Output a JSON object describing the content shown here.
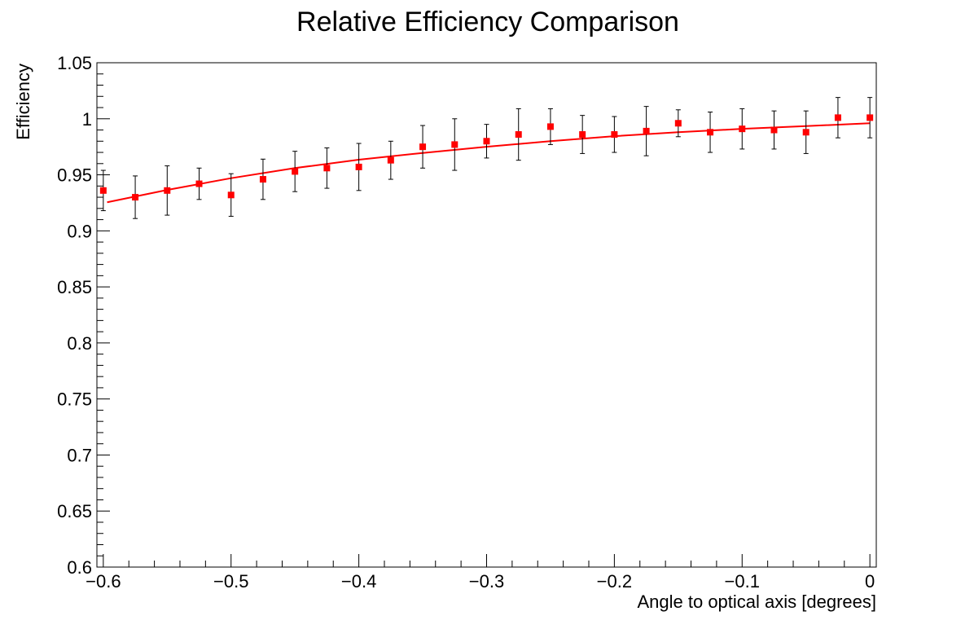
{
  "chart_data": {
    "type": "scatter",
    "title": "Relative Efficiency Comparison",
    "xlabel": "Angle to optical axis [degrees]",
    "ylabel": "Efficiency",
    "xlim": [
      -0.605,
      0.005
    ],
    "ylim": [
      0.6,
      1.05
    ],
    "x_ticks": [
      -0.6,
      -0.5,
      -0.4,
      -0.3,
      -0.2,
      -0.1,
      0
    ],
    "x_tick_labels": [
      "−0.6",
      "−0.5",
      "−0.4",
      "−0.3",
      "−0.2",
      "−0.1",
      "0"
    ],
    "y_ticks": [
      0.6,
      0.65,
      0.7,
      0.75,
      0.8,
      0.85,
      0.9,
      0.95,
      1.0,
      1.05
    ],
    "y_tick_labels": [
      "0.6",
      "0.65",
      "0.7",
      "0.75",
      "0.8",
      "0.85",
      "0.9",
      "0.95",
      "1",
      "1.05"
    ],
    "grid": false,
    "marker_color": "#ff0000",
    "error_bar_color": "#000000",
    "fit_color": "#ff0000",
    "points": [
      {
        "x": -0.6,
        "y": 0.936,
        "err": 0.018
      },
      {
        "x": -0.575,
        "y": 0.93,
        "err": 0.019
      },
      {
        "x": -0.55,
        "y": 0.936,
        "err": 0.022
      },
      {
        "x": -0.525,
        "y": 0.942,
        "err": 0.014
      },
      {
        "x": -0.5,
        "y": 0.932,
        "err": 0.019
      },
      {
        "x": -0.475,
        "y": 0.946,
        "err": 0.018
      },
      {
        "x": -0.45,
        "y": 0.953,
        "err": 0.018
      },
      {
        "x": -0.425,
        "y": 0.956,
        "err": 0.018
      },
      {
        "x": -0.4,
        "y": 0.957,
        "err": 0.021
      },
      {
        "x": -0.375,
        "y": 0.963,
        "err": 0.017
      },
      {
        "x": -0.35,
        "y": 0.975,
        "err": 0.019
      },
      {
        "x": -0.325,
        "y": 0.977,
        "err": 0.023
      },
      {
        "x": -0.3,
        "y": 0.98,
        "err": 0.015
      },
      {
        "x": -0.275,
        "y": 0.986,
        "err": 0.023
      },
      {
        "x": -0.25,
        "y": 0.993,
        "err": 0.016
      },
      {
        "x": -0.225,
        "y": 0.986,
        "err": 0.017
      },
      {
        "x": -0.2,
        "y": 0.986,
        "err": 0.016
      },
      {
        "x": -0.175,
        "y": 0.989,
        "err": 0.022
      },
      {
        "x": -0.15,
        "y": 0.996,
        "err": 0.012
      },
      {
        "x": -0.125,
        "y": 0.988,
        "err": 0.018
      },
      {
        "x": -0.1,
        "y": 0.991,
        "err": 0.018
      },
      {
        "x": -0.075,
        "y": 0.99,
        "err": 0.017
      },
      {
        "x": -0.05,
        "y": 0.988,
        "err": 0.019
      },
      {
        "x": -0.025,
        "y": 1.001,
        "err": 0.018
      },
      {
        "x": 0.0,
        "y": 1.001,
        "err": 0.018
      }
    ],
    "fit": {
      "type": "curve",
      "x": [
        -0.597,
        -0.55,
        -0.5,
        -0.45,
        -0.4,
        -0.35,
        -0.3,
        -0.25,
        -0.2,
        -0.15,
        -0.1,
        -0.05,
        0.0
      ],
      "y": [
        0.9255,
        0.9365,
        0.947,
        0.956,
        0.9635,
        0.9695,
        0.975,
        0.98,
        0.9845,
        0.988,
        0.991,
        0.9935,
        0.996
      ]
    }
  }
}
